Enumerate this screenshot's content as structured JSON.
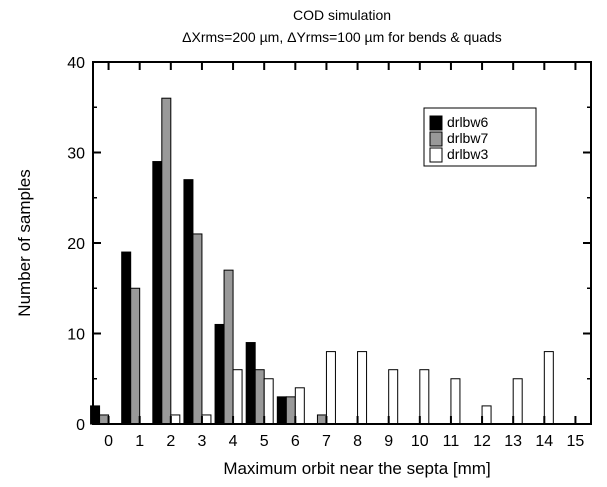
{
  "chart_data": {
    "type": "bar",
    "title": "COD simulation",
    "subtitle": "ΔXrms=200 µm, ΔYrms=100 µm for bends & quads",
    "xlabel": "Maximum orbit near the septa [mm]",
    "ylabel": "Number of samples",
    "xlim": [
      -0.5,
      15.5
    ],
    "ylim": [
      0,
      40
    ],
    "x_ticks": [
      "0",
      "1",
      "2",
      "3",
      "4",
      "5",
      "6",
      "7",
      "8",
      "9",
      "10",
      "11",
      "12",
      "13",
      "14",
      "15"
    ],
    "y_ticks": [
      "0",
      "10",
      "20",
      "30",
      "40"
    ],
    "grid": false,
    "legend_position": "top-right",
    "categories": [
      0,
      1,
      2,
      3,
      4,
      5,
      6,
      7,
      8,
      9,
      10,
      11,
      12,
      13,
      14,
      15
    ],
    "series": [
      {
        "name": "drlbw6",
        "color": "#000000",
        "values": [
          2,
          19,
          29,
          27,
          11,
          9,
          3,
          0,
          0,
          0,
          0,
          0,
          0,
          0,
          0,
          0
        ]
      },
      {
        "name": "drlbw7",
        "color": "#999999",
        "values": [
          1,
          15,
          36,
          21,
          17,
          6,
          3,
          1,
          0,
          0,
          0,
          0,
          0,
          0,
          0,
          0
        ]
      },
      {
        "name": "drlbw3",
        "color": "#ffffff",
        "values": [
          0,
          0,
          1,
          1,
          6,
          5,
          4,
          8,
          8,
          6,
          6,
          5,
          2,
          5,
          8,
          0
        ]
      }
    ]
  }
}
